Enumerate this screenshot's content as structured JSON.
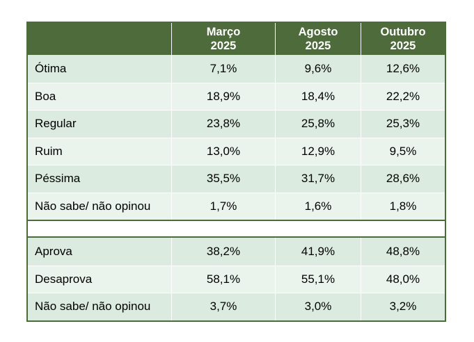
{
  "table": {
    "headers": [
      {
        "line1": "",
        "line2": ""
      },
      {
        "line1": "Março",
        "line2": "2025"
      },
      {
        "line1": "Agosto",
        "line2": "2025"
      },
      {
        "line1": "Outubro",
        "line2": "2025"
      }
    ],
    "section1": [
      {
        "label": "Ótima",
        "values": [
          "7,1%",
          "9,6%",
          "12,6%"
        ]
      },
      {
        "label": "Boa",
        "values": [
          "18,9%",
          "18,4%",
          "22,2%"
        ]
      },
      {
        "label": "Regular",
        "values": [
          "23,8%",
          "25,8%",
          "25,3%"
        ]
      },
      {
        "label": "Ruim",
        "values": [
          "13,0%",
          "12,9%",
          "9,5%"
        ]
      },
      {
        "label": "Péssima",
        "values": [
          "35,5%",
          "31,7%",
          "28,6%"
        ]
      },
      {
        "label": "Não sabe/ não opinou",
        "values": [
          "1,7%",
          "1,6%",
          "1,8%"
        ]
      }
    ],
    "section2": [
      {
        "label": "Aprova",
        "values": [
          "38,2%",
          "41,9%",
          "48,8%"
        ]
      },
      {
        "label": "Desaprova",
        "values": [
          "58,1%",
          "55,1%",
          "48,0%"
        ]
      },
      {
        "label": "Não sabe/ não opinou",
        "values": [
          "3,7%",
          "3,0%",
          "3,2%"
        ]
      }
    ]
  }
}
